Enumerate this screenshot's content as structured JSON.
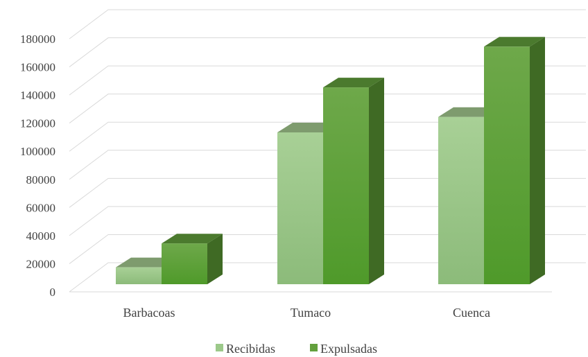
{
  "chart_data": {
    "type": "bar",
    "style": "3d-clustered-column",
    "categories": [
      "Barbacoas",
      "Tumaco",
      "Cuenca"
    ],
    "series": [
      {
        "name": "Recibidas",
        "values": [
          12000,
          108000,
          119000
        ],
        "color": "#9cc98a"
      },
      {
        "name": "Expulsadas",
        "values": [
          29000,
          140000,
          169000
        ],
        "color": "#63a03d"
      }
    ],
    "ylim": [
      0,
      180000
    ],
    "yticks": [
      "0",
      "20000",
      "40000",
      "60000",
      "80000",
      "100000",
      "120000",
      "140000",
      "160000",
      "180000"
    ],
    "grid": true,
    "legend": "bottom"
  }
}
